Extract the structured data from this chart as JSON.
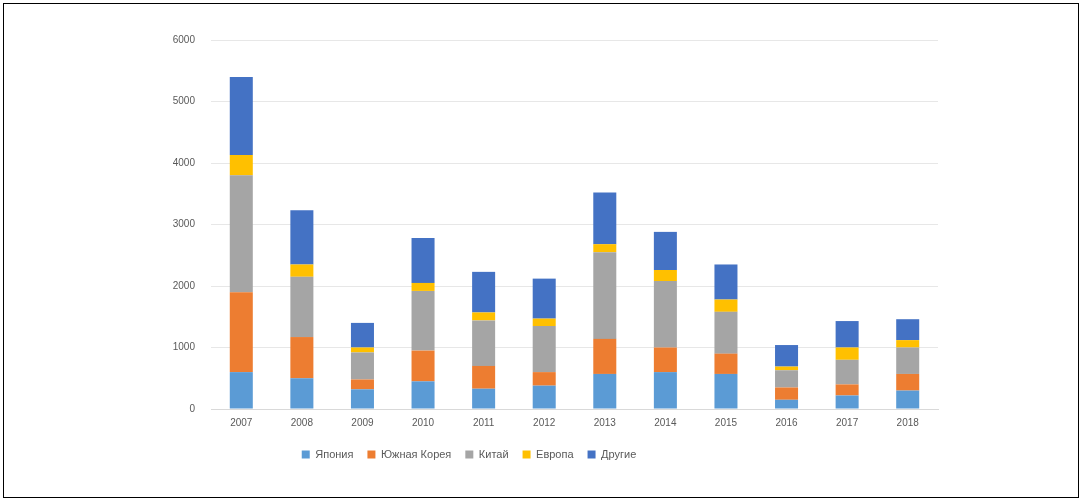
{
  "chart_data": {
    "type": "bar",
    "stacked": true,
    "categories": [
      "2007",
      "2008",
      "2009",
      "2010",
      "2011",
      "2012",
      "2013",
      "2014",
      "2015",
      "2016",
      "2017",
      "2018"
    ],
    "series": [
      {
        "name": "Япония",
        "color": "#5b9bd5",
        "values": [
          600,
          500,
          320,
          450,
          330,
          380,
          570,
          600,
          570,
          150,
          220,
          300
        ]
      },
      {
        "name": "Южная Корея",
        "color": "#ed7d31",
        "values": [
          1300,
          670,
          160,
          500,
          370,
          220,
          570,
          400,
          330,
          200,
          180,
          270
        ]
      },
      {
        "name": "Китай",
        "color": "#a5a5a5",
        "values": [
          1900,
          980,
          440,
          970,
          740,
          750,
          1410,
          1080,
          680,
          280,
          400,
          430
        ]
      },
      {
        "name": "Европа",
        "color": "#ffc000",
        "values": [
          330,
          200,
          80,
          130,
          130,
          120,
          130,
          180,
          200,
          60,
          200,
          120
        ]
      },
      {
        "name": "Другие",
        "color": "#4472c4",
        "values": [
          1270,
          880,
          400,
          730,
          660,
          650,
          840,
          620,
          570,
          350,
          430,
          340
        ]
      }
    ],
    "ylim": [
      0,
      6000
    ],
    "yticks": [
      0,
      1000,
      2000,
      3000,
      4000,
      5000,
      6000
    ],
    "grid": "y",
    "legend": "bottom"
  }
}
